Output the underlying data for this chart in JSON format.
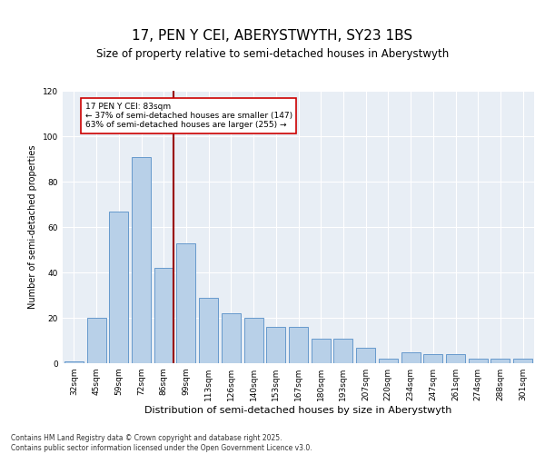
{
  "title": "17, PEN Y CEI, ABERYSTWYTH, SY23 1BS",
  "subtitle": "Size of property relative to semi-detached houses in Aberystwyth",
  "xlabel": "Distribution of semi-detached houses by size in Aberystwyth",
  "ylabel": "Number of semi-detached properties",
  "categories": [
    "32sqm",
    "45sqm",
    "59sqm",
    "72sqm",
    "86sqm",
    "99sqm",
    "113sqm",
    "126sqm",
    "140sqm",
    "153sqm",
    "167sqm",
    "180sqm",
    "193sqm",
    "207sqm",
    "220sqm",
    "234sqm",
    "247sqm",
    "261sqm",
    "274sqm",
    "288sqm",
    "301sqm"
  ],
  "values": [
    1,
    20,
    67,
    91,
    42,
    53,
    29,
    22,
    20,
    16,
    16,
    11,
    11,
    7,
    2,
    5,
    4,
    4,
    2,
    2,
    2
  ],
  "bar_color": "#b8d0e8",
  "bar_edge_color": "#6699cc",
  "vline_index": 4,
  "vline_color": "#990000",
  "annotation_text": "17 PEN Y CEI: 83sqm\n← 37% of semi-detached houses are smaller (147)\n63% of semi-detached houses are larger (255) →",
  "annotation_box_color": "#ffffff",
  "annotation_box_edge": "#cc0000",
  "ylim": [
    0,
    120
  ],
  "yticks": [
    0,
    20,
    40,
    60,
    80,
    100,
    120
  ],
  "background_color": "#dde8f0",
  "plot_bg_color": "#e8eef5",
  "footer_text": "Contains HM Land Registry data © Crown copyright and database right 2025.\nContains public sector information licensed under the Open Government Licence v3.0.",
  "title_fontsize": 11,
  "subtitle_fontsize": 8.5,
  "xlabel_fontsize": 8,
  "ylabel_fontsize": 7,
  "tick_fontsize": 6.5,
  "annotation_fontsize": 6.5,
  "footer_fontsize": 5.5
}
